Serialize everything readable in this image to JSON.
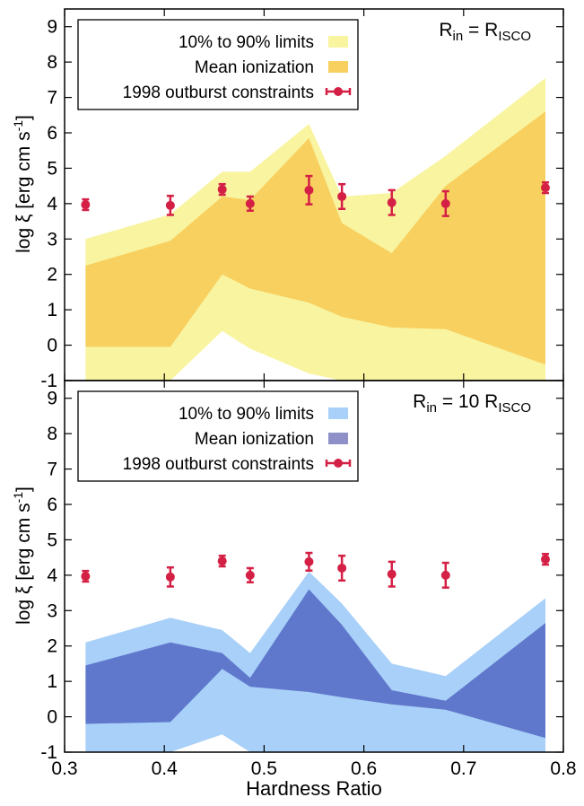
{
  "xlabel": "Hardness Ratio",
  "chart_data": [
    {
      "type": "area",
      "title_main": "R",
      "title_sub": "in",
      "title_eq": " = ",
      "title_r2": "R",
      "title_sub2": "ISCO",
      "ylabel": "log ξ [erg cm s",
      "ylabel_sup": "-1",
      "ylabel_close": "]",
      "xlim": [
        0.3,
        0.8
      ],
      "ylim": [
        -1,
        9.5
      ],
      "x_ticks": [],
      "y_ticks": [
        -1,
        0,
        1,
        2,
        3,
        4,
        5,
        6,
        7,
        8,
        9
      ],
      "colors": {
        "outer": "#f8f4a0",
        "inner": "#f8d060"
      },
      "legend": [
        {
          "label": "10% to 90% limits",
          "swatch": "#f8f4a0"
        },
        {
          "label": "Mean ionization",
          "swatch": "#f8d060"
        },
        {
          "label": "1998 outburst constraints",
          "swatch": "#d42045"
        }
      ],
      "x": [
        0.321,
        0.406,
        0.458,
        0.486,
        0.545,
        0.578,
        0.628,
        0.682,
        0.782
      ],
      "outer_upper": [
        3.0,
        3.7,
        4.9,
        4.9,
        6.25,
        4.2,
        4.3,
        5.35,
        7.55
      ],
      "outer_lower": [
        -1.0,
        -1.0,
        0.4,
        -0.1,
        -0.8,
        -1.0,
        -1.0,
        -1.0,
        -1.0
      ],
      "inner_upper": [
        2.25,
        2.95,
        4.2,
        4.1,
        5.85,
        3.45,
        2.6,
        4.5,
        6.6
      ],
      "inner_lower": [
        -0.05,
        -0.05,
        2.0,
        1.6,
        1.2,
        0.8,
        0.5,
        0.45,
        -0.55
      ],
      "points": [
        {
          "x": 0.321,
          "y": 3.97,
          "err": 0.15
        },
        {
          "x": 0.406,
          "y": 3.95,
          "err": 0.27
        },
        {
          "x": 0.458,
          "y": 4.4,
          "err": 0.15
        },
        {
          "x": 0.486,
          "y": 4.0,
          "err": 0.2
        },
        {
          "x": 0.545,
          "y": 4.38,
          "err": 0.4
        },
        {
          "x": 0.578,
          "y": 4.2,
          "err": 0.35
        },
        {
          "x": 0.628,
          "y": 4.03,
          "err": 0.35
        },
        {
          "x": 0.682,
          "y": 4.0,
          "err": 0.35
        },
        {
          "x": 0.782,
          "y": 4.45,
          "err": 0.15
        }
      ]
    },
    {
      "type": "area",
      "title_main": "R",
      "title_sub": "in",
      "title_eq": " = 10 ",
      "title_r2": "R",
      "title_sub2": "ISCO",
      "ylabel": "log ξ [erg cm s",
      "ylabel_sup": "-1",
      "ylabel_close": "]",
      "xlim": [
        0.3,
        0.8
      ],
      "ylim": [
        -1,
        9.5
      ],
      "x_ticks": [
        0.3,
        0.4,
        0.5,
        0.6,
        0.7,
        0.8
      ],
      "y_ticks": [
        -1,
        0,
        1,
        2,
        3,
        4,
        5,
        6,
        7,
        8,
        9
      ],
      "colors": {
        "outer": "#a8d0f8",
        "inner": "#6078cc"
      },
      "legend": [
        {
          "label": "10% to 90% limits",
          "swatch": "#a8d0f8"
        },
        {
          "label": "Mean ionization",
          "swatch": "#8f90c8"
        },
        {
          "label": "1998 outburst constraints",
          "swatch": "#d42045"
        }
      ],
      "x": [
        0.321,
        0.406,
        0.458,
        0.486,
        0.545,
        0.578,
        0.628,
        0.682,
        0.782
      ],
      "outer_upper": [
        2.1,
        2.8,
        2.45,
        1.8,
        4.1,
        3.2,
        1.5,
        1.15,
        3.35
      ],
      "outer_lower": [
        -1.0,
        -1.0,
        -0.5,
        -1.0,
        -1.0,
        -1.0,
        -1.0,
        -1.0,
        -1.0
      ],
      "inner_upper": [
        1.45,
        2.1,
        1.8,
        1.1,
        3.6,
        2.6,
        0.75,
        0.45,
        2.65
      ],
      "inner_lower": [
        -0.2,
        -0.15,
        1.35,
        0.85,
        0.7,
        0.55,
        0.35,
        0.2,
        -0.6
      ],
      "points": [
        {
          "x": 0.321,
          "y": 3.97,
          "err": 0.15
        },
        {
          "x": 0.406,
          "y": 3.95,
          "err": 0.27
        },
        {
          "x": 0.458,
          "y": 4.4,
          "err": 0.15
        },
        {
          "x": 0.486,
          "y": 4.0,
          "err": 0.2
        },
        {
          "x": 0.545,
          "y": 4.38,
          "err": 0.25
        },
        {
          "x": 0.578,
          "y": 4.2,
          "err": 0.35
        },
        {
          "x": 0.628,
          "y": 4.03,
          "err": 0.35
        },
        {
          "x": 0.682,
          "y": 4.0,
          "err": 0.35
        },
        {
          "x": 0.782,
          "y": 4.45,
          "err": 0.15
        }
      ]
    }
  ]
}
